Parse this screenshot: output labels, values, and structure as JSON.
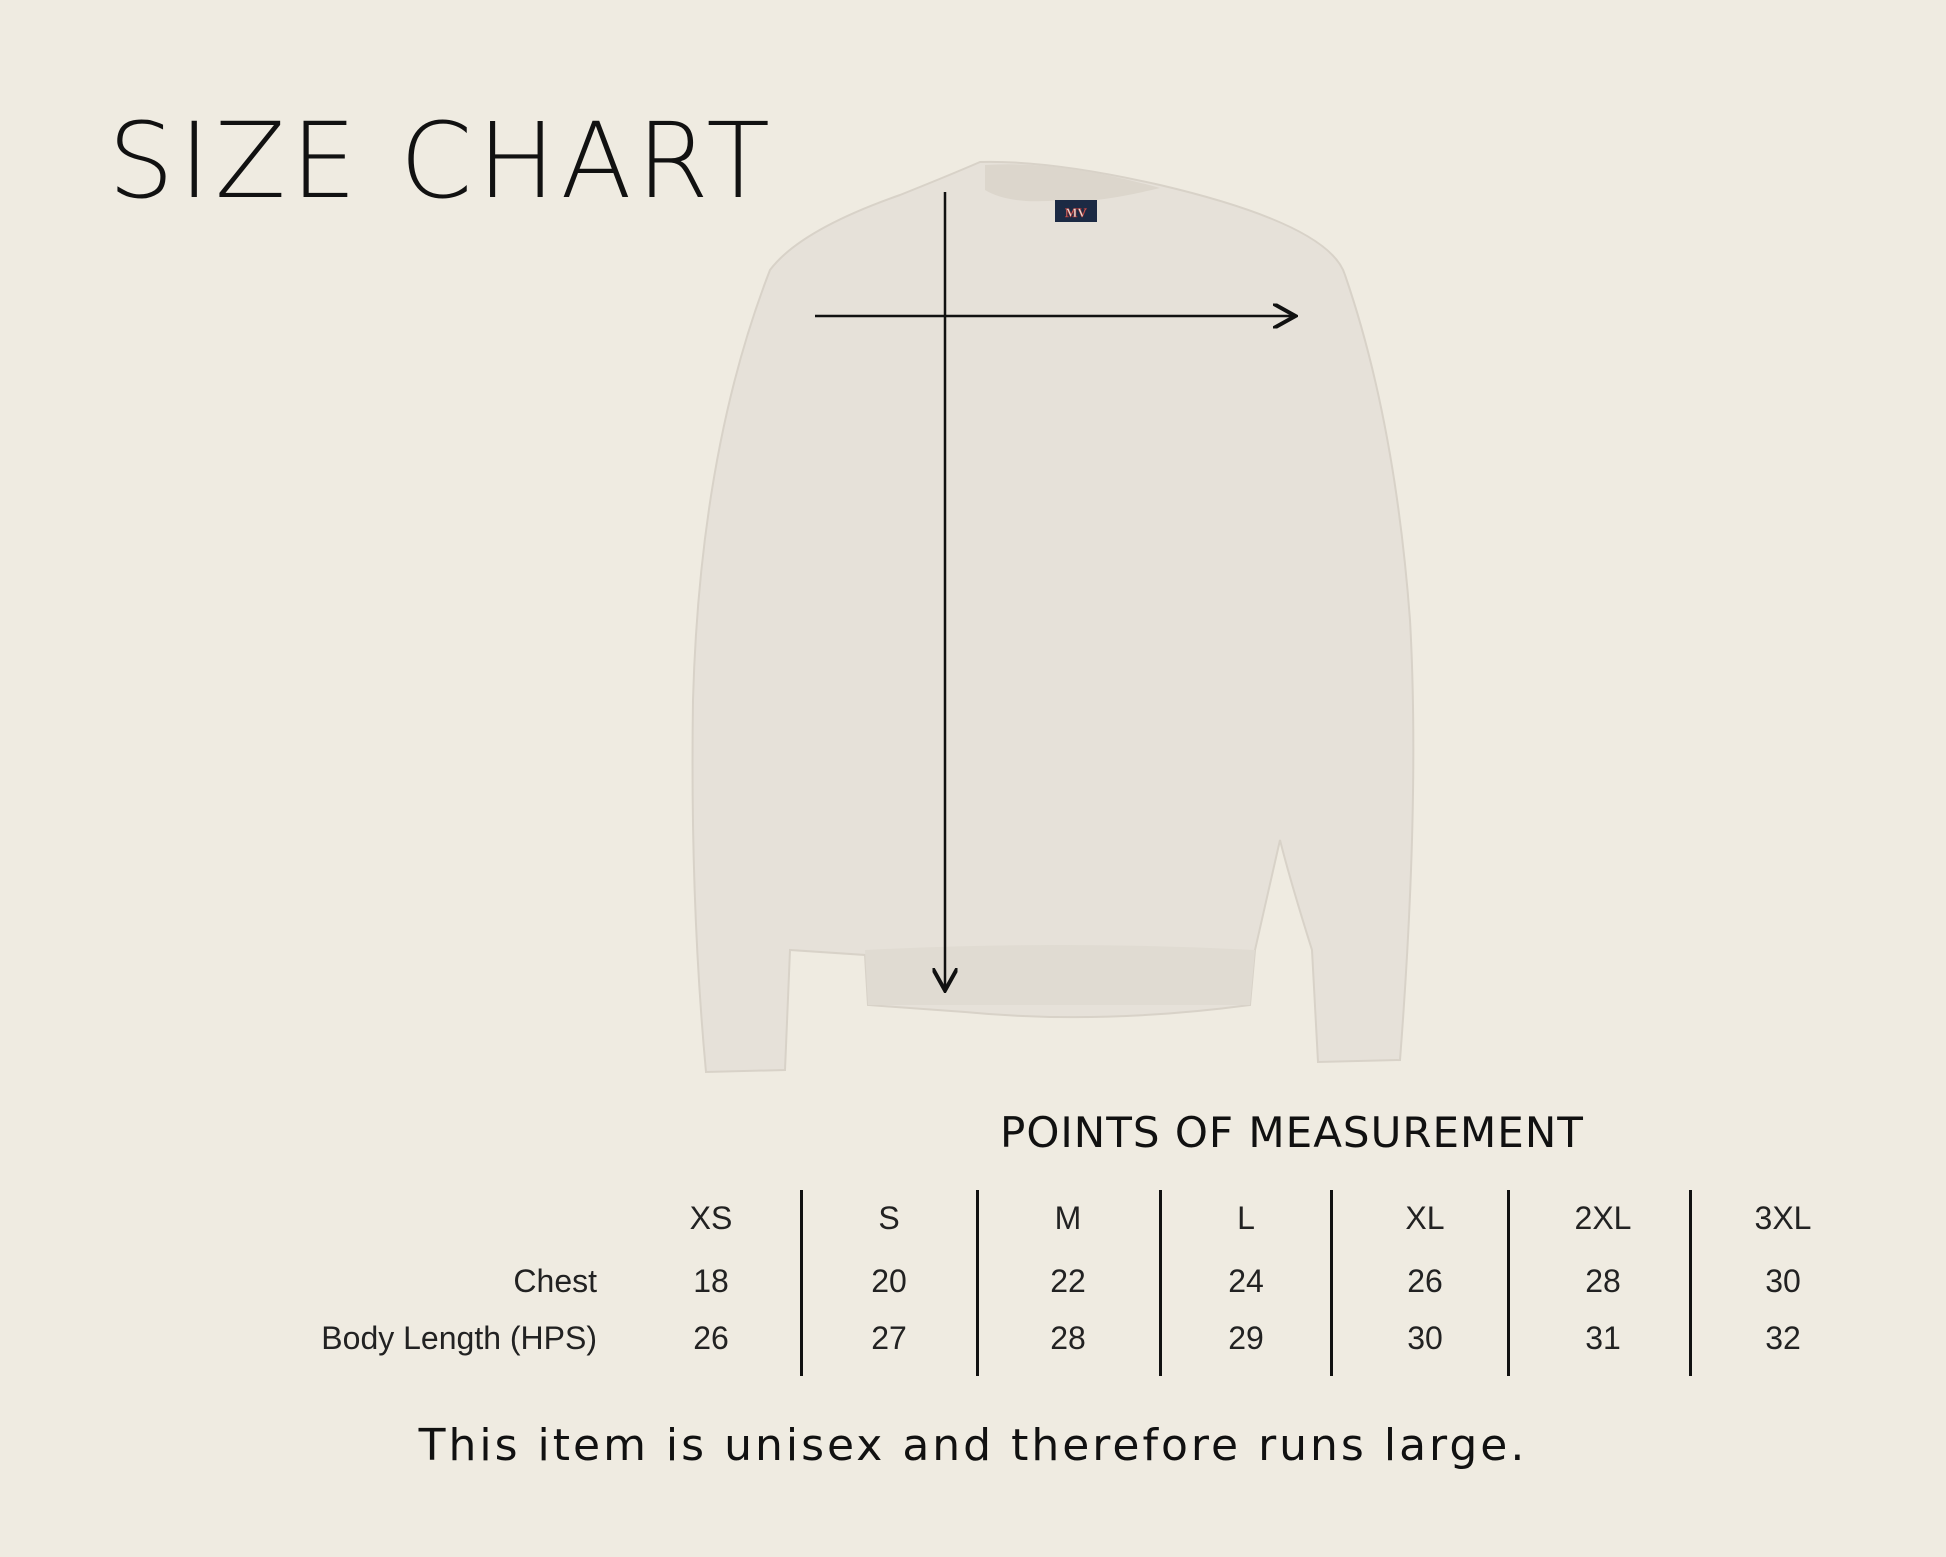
{
  "title": "SIZE CHART",
  "product_label": "MV",
  "section_title": "POINTS OF MEASUREMENT",
  "table": {
    "sizes": [
      "XS",
      "S",
      "M",
      "L",
      "XL",
      "2XL",
      "3XL"
    ],
    "rows": [
      {
        "label": "Chest",
        "values": [
          "18",
          "20",
          "22",
          "24",
          "26",
          "28",
          "30"
        ]
      },
      {
        "label": "Body Length (HPS)",
        "values": [
          "26",
          "27",
          "28",
          "29",
          "30",
          "31",
          "32"
        ]
      }
    ]
  },
  "note": "This item is unisex and therefore runs large.",
  "colors": {
    "background": "#efebe1",
    "garment": "#e6e1d9",
    "text": "#111111"
  }
}
